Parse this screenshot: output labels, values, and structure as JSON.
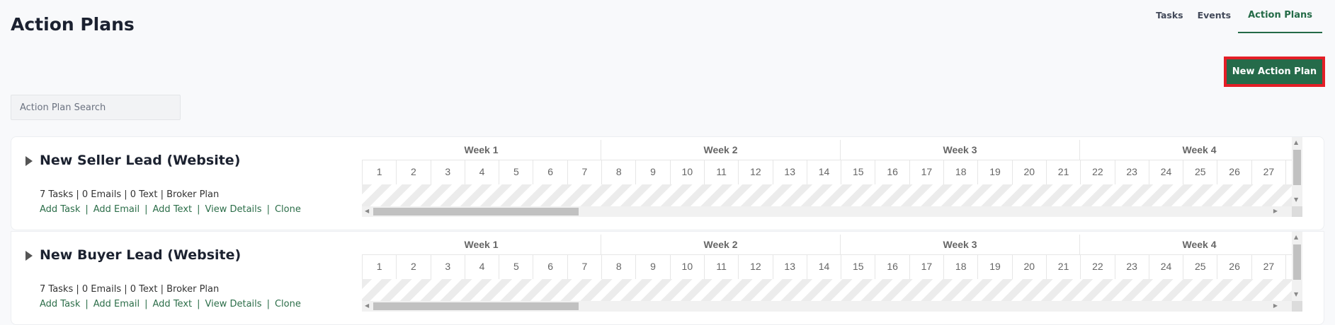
{
  "header": {
    "title": "Action Plans",
    "tabs": [
      {
        "label": "Tasks",
        "active": false
      },
      {
        "label": "Events",
        "active": false
      },
      {
        "label": "Action Plans",
        "active": true
      }
    ]
  },
  "toolbar": {
    "new_label": "New Action Plan"
  },
  "search": {
    "placeholder": "Action Plan Search",
    "value": ""
  },
  "colors": {
    "accent": "#256b4a",
    "highlight": "#e41e26"
  },
  "timeline": {
    "weeks": [
      "Week 1",
      "Week 2",
      "Week 3",
      "Week 4"
    ],
    "days": [
      "1",
      "2",
      "3",
      "4",
      "5",
      "6",
      "7",
      "8",
      "9",
      "10",
      "11",
      "12",
      "13",
      "14",
      "15",
      "16",
      "17",
      "18",
      "19",
      "20",
      "21",
      "22",
      "23",
      "24",
      "25",
      "26",
      "27",
      ""
    ]
  },
  "plans": [
    {
      "name": "New Seller Lead (Website)",
      "stats": "7 Tasks | 0 Emails | 0 Text | Broker Plan",
      "links": [
        "Add Task",
        "Add Email",
        "Add Text",
        "View Details",
        "Clone"
      ]
    },
    {
      "name": "New Buyer Lead (Website)",
      "stats": "7 Tasks | 0 Emails | 0 Text | Broker Plan",
      "links": [
        "Add Task",
        "Add Email",
        "Add Text",
        "View Details",
        "Clone"
      ]
    }
  ]
}
